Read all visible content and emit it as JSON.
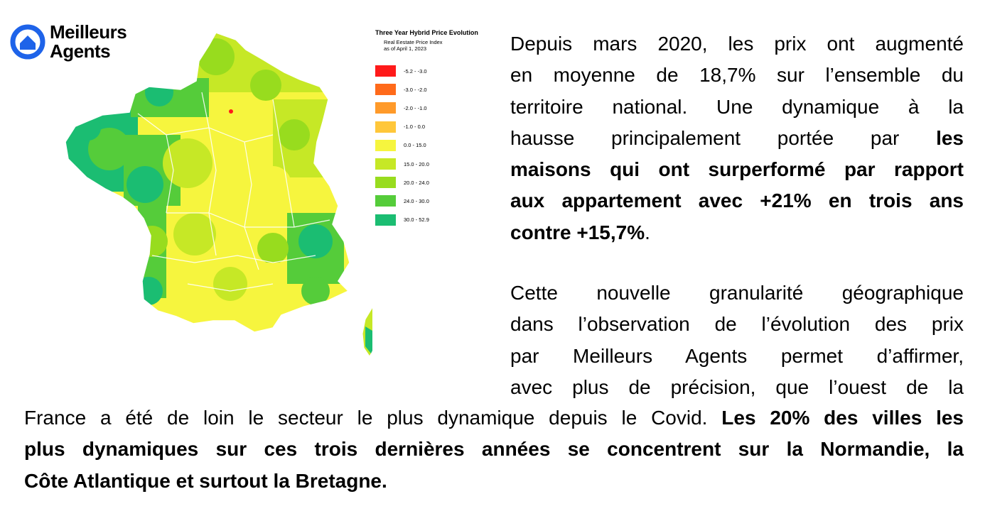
{
  "logo": {
    "line1": "Meilleurs",
    "line2": "Agents",
    "brand_color": "#1e63e9"
  },
  "map": {
    "title": "Three Year Hybrid Price Evolution",
    "subtitle_line1": "Real Eestate Price Index",
    "subtitle_line2": "as of April 1, 2023",
    "legend": [
      {
        "label": "-5.2 - -3.0",
        "color": "#ff1a1a"
      },
      {
        "label": "-3.0 - -2.0",
        "color": "#ff6a1a"
      },
      {
        "label": "-2.0 - -1.0",
        "color": "#ff9a2a"
      },
      {
        "label": "-1.0 - 0.0",
        "color": "#ffc73a"
      },
      {
        "label": "0.0 - 15.0",
        "color": "#f6f53e"
      },
      {
        "label": "15.0 - 20.0",
        "color": "#c6e826"
      },
      {
        "label": "20.0 - 24.0",
        "color": "#98dc1e"
      },
      {
        "label": "24.0 - 30.0",
        "color": "#55cc3a"
      },
      {
        "label": "30.0 - 52.9",
        "color": "#1bbd72"
      }
    ]
  },
  "text": {
    "p1_l1": "Depuis mars 2020, les prix ont augmenté",
    "p1_l2": "en moyenne de 18,7% sur l’ensemble du",
    "p1_l3": "territoire national. Une dynamique à la",
    "p1_l4a": "hausse principalement portée par ",
    "p1_l4b": "les",
    "p1_l5": "maisons qui ont surperformé par rapport",
    "p1_l6": "aux appartement avec +21% en trois ans",
    "p1_l7a": "contre +15,7%",
    "p1_l7b": ".",
    "p2_l1": "Cette nouvelle granularité géographique",
    "p2_l2": "dans l’observation de l’évolution des prix",
    "p2_l3": "par Meilleurs Agents  permet d’affirmer,",
    "p2_l4": "avec plus de précision, que l’ouest de la",
    "p3_l1a": "France a été de loin le secteur le plus dynamique depuis le Covid. ",
    "p3_l1b": "Les 20% des villes les",
    "p3_l2": "plus dynamiques sur ces trois dernières années se concentrent sur la Normandie, la",
    "p3_l3": "Côte Atlantique et surtout la Bretagne."
  }
}
